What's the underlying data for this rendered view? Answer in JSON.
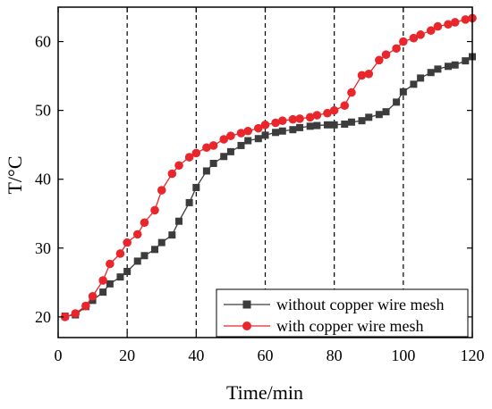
{
  "chart_data": {
    "type": "line",
    "xlabel": "Time/min",
    "ylabel": "T/°C",
    "xlim": [
      0,
      120
    ],
    "ylim": [
      17,
      65
    ],
    "xticks": [
      0,
      20,
      40,
      60,
      80,
      100,
      120
    ],
    "yticks": [
      20,
      30,
      40,
      50,
      60
    ],
    "vlines": [
      20,
      40,
      60,
      80,
      100
    ],
    "legend_position": "bottom-right",
    "series": [
      {
        "name": "without copper wire mesh",
        "color": "#3c3c3c",
        "marker": "square",
        "x": [
          2,
          5,
          8,
          10,
          13,
          15,
          18,
          20,
          23,
          25,
          28,
          30,
          33,
          35,
          38,
          40,
          43,
          45,
          48,
          50,
          53,
          55,
          58,
          60,
          63,
          65,
          68,
          70,
          73,
          75,
          78,
          80,
          83,
          85,
          88,
          90,
          93,
          95,
          98,
          100,
          103,
          105,
          108,
          110,
          113,
          115,
          118,
          120
        ],
        "y": [
          20.1,
          20.3,
          21.5,
          22.4,
          23.6,
          24.8,
          25.8,
          26.6,
          28.1,
          28.9,
          29.8,
          30.8,
          31.9,
          33.9,
          36.6,
          38.8,
          41.2,
          42.3,
          43.3,
          44.0,
          44.9,
          45.6,
          45.9,
          46.4,
          46.8,
          47.0,
          47.2,
          47.5,
          47.7,
          47.8,
          47.9,
          47.9,
          48.0,
          48.3,
          48.5,
          49.0,
          49.4,
          49.8,
          51.2,
          52.7,
          53.8,
          54.7,
          55.5,
          56.0,
          56.4,
          56.6,
          57.2,
          57.8
        ]
      },
      {
        "name": "with copper wire mesh",
        "color": "#e8262b",
        "marker": "circle",
        "x": [
          2,
          5,
          8,
          10,
          13,
          15,
          18,
          20,
          23,
          25,
          28,
          30,
          33,
          35,
          38,
          40,
          43,
          45,
          48,
          50,
          53,
          55,
          58,
          60,
          63,
          65,
          68,
          70,
          73,
          75,
          78,
          80,
          83,
          85,
          88,
          90,
          93,
          95,
          98,
          100,
          103,
          105,
          108,
          110,
          113,
          115,
          118,
          120
        ],
        "y": [
          20.0,
          20.5,
          21.6,
          23.0,
          25.3,
          27.7,
          29.2,
          30.8,
          32.0,
          33.7,
          35.5,
          38.4,
          40.8,
          42.0,
          43.2,
          43.8,
          44.6,
          44.9,
          45.8,
          46.3,
          46.7,
          47.0,
          47.4,
          47.9,
          48.2,
          48.5,
          48.7,
          48.8,
          49.0,
          49.3,
          49.6,
          50.0,
          50.7,
          52.6,
          55.1,
          55.3,
          57.3,
          58.1,
          59.0,
          60.0,
          60.5,
          61.0,
          61.6,
          62.2,
          62.5,
          62.8,
          63.2,
          63.4
        ]
      }
    ]
  }
}
